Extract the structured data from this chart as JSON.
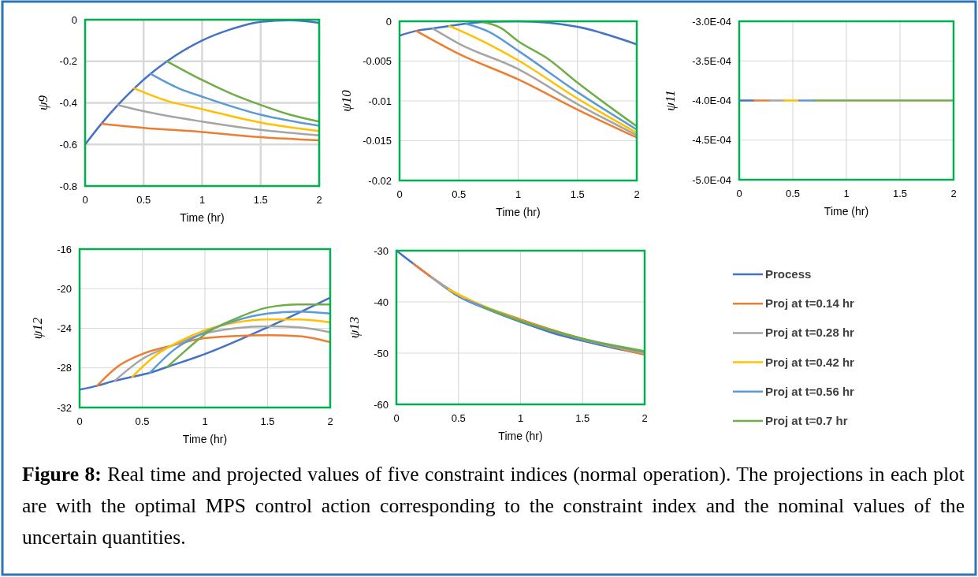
{
  "chart_data": [
    {
      "type": "line",
      "xlabel": "Time (hr)",
      "ylabel": "ψ9",
      "xlim": [
        0,
        2
      ],
      "xticks": [
        0,
        0.5,
        1,
        1.5,
        2
      ],
      "ylim": [
        -0.8,
        0
      ],
      "yticks": [
        -0.8,
        -0.6,
        -0.4,
        -0.2,
        0
      ],
      "grid": true,
      "legend": false,
      "series": [
        {
          "color": "#4472c4",
          "x": [
            0,
            0.14,
            0.28,
            0.42,
            0.56,
            0.7,
            1,
            1.25,
            1.5,
            1.75,
            2
          ],
          "values": [
            -0.6,
            -0.5,
            -0.41,
            -0.33,
            -0.26,
            -0.2,
            -0.1,
            -0.045,
            -0.01,
            -0.003,
            -0.015
          ]
        },
        {
          "color": "#ed7d31",
          "x": [
            0.14,
            0.5,
            1,
            1.5,
            2
          ],
          "values": [
            -0.5,
            -0.52,
            -0.54,
            -0.565,
            -0.58
          ]
        },
        {
          "color": "#a5a5a5",
          "x": [
            0.28,
            0.5,
            1,
            1.5,
            2
          ],
          "values": [
            -0.41,
            -0.44,
            -0.49,
            -0.53,
            -0.556
          ]
        },
        {
          "color": "#ffc000",
          "x": [
            0.42,
            0.7,
            1,
            1.5,
            2
          ],
          "values": [
            -0.33,
            -0.39,
            -0.43,
            -0.495,
            -0.536
          ]
        },
        {
          "color": "#5b9bd5",
          "x": [
            0.56,
            0.8,
            1,
            1.5,
            2
          ],
          "values": [
            -0.26,
            -0.33,
            -0.37,
            -0.457,
            -0.51
          ]
        },
        {
          "color": "#70ad47",
          "x": [
            0.7,
            1,
            1.25,
            1.5,
            1.75,
            2
          ],
          "values": [
            -0.2,
            -0.29,
            -0.356,
            -0.41,
            -0.457,
            -0.49
          ]
        }
      ]
    },
    {
      "type": "line",
      "xlabel": "Time (hr)",
      "ylabel": "ψ10",
      "xlim": [
        0,
        2
      ],
      "xticks": [
        0,
        0.5,
        1,
        1.5,
        2
      ],
      "ylim": [
        -0.02,
        0
      ],
      "yticks": [
        -0.02,
        -0.015,
        -0.01,
        -0.005,
        0
      ],
      "grid": true,
      "legend": false,
      "series": [
        {
          "color": "#4472c4",
          "x": [
            0,
            0.14,
            0.28,
            0.42,
            0.56,
            0.7,
            1,
            1.5,
            2
          ],
          "values": [
            -0.0018,
            -0.0012,
            -0.0009,
            -0.0006,
            -0.0003,
            -0.0001,
            0,
            -0.0007,
            -0.0029
          ]
        },
        {
          "color": "#ed7d31",
          "x": [
            0.14,
            0.5,
            1,
            1.5,
            2
          ],
          "values": [
            -0.0012,
            -0.0041,
            -0.0073,
            -0.0111,
            -0.0146
          ]
        },
        {
          "color": "#a5a5a5",
          "x": [
            0.28,
            0.5,
            1,
            1.5,
            2
          ],
          "values": [
            -0.0009,
            -0.0028,
            -0.006,
            -0.0104,
            -0.0143
          ]
        },
        {
          "color": "#ffc000",
          "x": [
            0.42,
            0.5,
            1,
            1.5,
            2
          ],
          "values": [
            -0.0006,
            -0.0011,
            -0.0049,
            -0.0097,
            -0.014
          ]
        },
        {
          "color": "#5b9bd5",
          "x": [
            0.56,
            0.75,
            1,
            1.5,
            2
          ],
          "values": [
            -0.0003,
            -0.0013,
            -0.0037,
            -0.0089,
            -0.0136
          ]
        },
        {
          "color": "#70ad47",
          "x": [
            0.7,
            0.85,
            1,
            1.25,
            1.5,
            2
          ],
          "values": [
            -0.0001,
            -0.0008,
            -0.0025,
            -0.0047,
            -0.0077,
            -0.0132
          ]
        }
      ]
    },
    {
      "type": "line",
      "xlabel": "Time (hr)",
      "ylabel": "ψ11",
      "xlim": [
        0,
        2
      ],
      "xticks": [
        0,
        0.5,
        1,
        1.5,
        2
      ],
      "ylim": [
        -0.0005,
        -0.0003
      ],
      "yticks": [
        {
          "value": -0.0005,
          "label": "-5.0E-04"
        },
        {
          "value": -0.00045,
          "label": "-4.5E-04"
        },
        {
          "value": -0.0004,
          "label": "-4.0E-04"
        },
        {
          "value": -0.00035,
          "label": "-3.5E-04"
        },
        {
          "value": -0.0003,
          "label": "-3.0E-04"
        }
      ],
      "grid": true,
      "legend": false,
      "series": [
        {
          "color": "#4472c4",
          "x": [
            0,
            0.14
          ],
          "values": [
            -0.0004,
            -0.0004
          ]
        },
        {
          "color": "#ed7d31",
          "x": [
            0.14,
            0.28
          ],
          "values": [
            -0.0004,
            -0.0004
          ]
        },
        {
          "color": "#a5a5a5",
          "x": [
            0.28,
            0.42
          ],
          "values": [
            -0.0004,
            -0.0004
          ]
        },
        {
          "color": "#ffc000",
          "x": [
            0.42,
            0.56
          ],
          "values": [
            -0.0004,
            -0.0004
          ]
        },
        {
          "color": "#5b9bd5",
          "x": [
            0.56,
            0.7
          ],
          "values": [
            -0.0004,
            -0.0004
          ]
        },
        {
          "color": "#70ad47",
          "x": [
            0.7,
            2
          ],
          "values": [
            -0.0004,
            -0.0004
          ]
        }
      ]
    },
    {
      "type": "line",
      "xlabel": "Time (hr)",
      "ylabel": "ψ12",
      "xlim": [
        0,
        2
      ],
      "xticks": [
        0,
        0.5,
        1,
        1.5,
        2
      ],
      "ylim": [
        -32,
        -16
      ],
      "yticks": [
        -32,
        -28,
        -24,
        -20,
        -16
      ],
      "grid": true,
      "legend": false,
      "series": [
        {
          "color": "#4472c4",
          "x": [
            0,
            0.14,
            0.28,
            0.42,
            0.56,
            0.7,
            1,
            1.5,
            2
          ],
          "values": [
            -30.2,
            -29.8,
            -29.3,
            -28.9,
            -28.5,
            -27.9,
            -26.6,
            -23.9,
            -20.9
          ]
        },
        {
          "color": "#ed7d31",
          "x": [
            0.14,
            0.3,
            0.5,
            0.75,
            1,
            1.5,
            1.75,
            2
          ],
          "values": [
            -29.8,
            -27.9,
            -26.6,
            -25.7,
            -25,
            -24.7,
            -24.8,
            -25.4
          ]
        },
        {
          "color": "#a5a5a5",
          "x": [
            0.28,
            0.5,
            0.75,
            1,
            1.5,
            1.75,
            2
          ],
          "values": [
            -29.3,
            -27.1,
            -25.7,
            -24.5,
            -23.8,
            -23.9,
            -24.4
          ]
        },
        {
          "color": "#ffc000",
          "x": [
            0.42,
            0.6,
            0.8,
            1,
            1.25,
            1.5,
            1.75,
            2
          ],
          "values": [
            -28.9,
            -26.8,
            -25.3,
            -24.2,
            -23.4,
            -23.1,
            -23.1,
            -23.4
          ]
        },
        {
          "color": "#5b9bd5",
          "x": [
            0.56,
            0.75,
            1,
            1.25,
            1.5,
            1.75,
            2
          ],
          "values": [
            -28.5,
            -26.2,
            -24.4,
            -23.2,
            -22.5,
            -22.3,
            -22.5
          ]
        },
        {
          "color": "#70ad47",
          "x": [
            0.7,
            0.85,
            1,
            1.25,
            1.5,
            1.75,
            2
          ],
          "values": [
            -27.9,
            -26.2,
            -24.6,
            -23,
            -21.9,
            -21.6,
            -21.6
          ]
        }
      ]
    },
    {
      "type": "line",
      "xlabel": "Time (hr)",
      "ylabel": "ψ13",
      "xlim": [
        0,
        2
      ],
      "xticks": [
        0,
        0.5,
        1,
        1.5,
        2
      ],
      "ylim": [
        -60,
        -30
      ],
      "yticks": [
        -60,
        -50,
        -40,
        -30
      ],
      "grid": true,
      "legend": "right",
      "annotations": [
        "Figure 8: Real time and projected values of five constraint indices (normal operation). The projections in each plot are with the optimal MPS control action corresponding to the constraint index and the nominal values of the uncertain quantities."
      ],
      "series": [
        {
          "name": "Process",
          "color": "#4472c4",
          "x": [
            0,
            0.25,
            0.5,
            0.75,
            1,
            1.25,
            1.5,
            1.75,
            2
          ],
          "values": [
            -30,
            -34.6,
            -38.9,
            -41.6,
            -43.9,
            -46,
            -47.6,
            -49,
            -50.2
          ]
        },
        {
          "name": "Proj at t=0.14 hr",
          "color": "#ed7d31",
          "x": [
            0.14,
            0.5,
            1,
            1.5,
            2
          ],
          "values": [
            -32.6,
            -38.6,
            -43.4,
            -47.2,
            -50.3
          ]
        },
        {
          "name": "Proj at t=0.28 hr",
          "color": "#a5a5a5",
          "x": [
            0.28,
            0.5,
            1,
            1.5,
            2
          ],
          "values": [
            -35.2,
            -38.7,
            -43.6,
            -47.3,
            -50
          ]
        },
        {
          "name": "Proj at t=0.42 hr",
          "color": "#ffc000",
          "x": [
            0.42,
            0.75,
            1,
            1.5,
            2
          ],
          "values": [
            -37.6,
            -41.3,
            -43.6,
            -47.3,
            -49.9
          ]
        },
        {
          "name": "Proj at t=0.56 hr",
          "color": "#5b9bd5",
          "x": [
            0.56,
            0.75,
            1,
            1.5,
            2
          ],
          "values": [
            -39.6,
            -41.4,
            -43.7,
            -47.3,
            -49.8
          ]
        },
        {
          "name": "Proj at t=0.7 hr",
          "color": "#70ad47",
          "x": [
            0.7,
            1,
            1.5,
            2
          ],
          "values": [
            -41,
            -43.7,
            -47.2,
            -49.6
          ]
        }
      ]
    }
  ]
}
